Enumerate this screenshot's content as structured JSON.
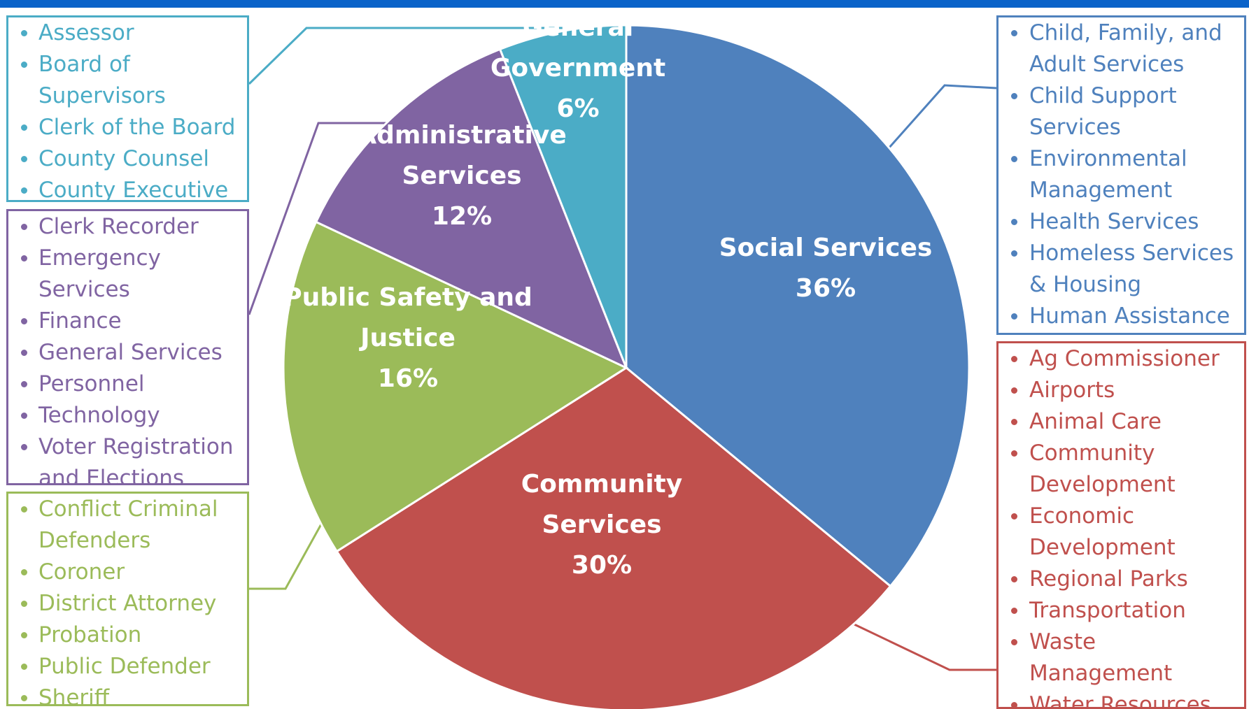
{
  "chart_data": {
    "type": "pie",
    "title": "",
    "categories": [
      "Social Services",
      "Community Services",
      "Public Safety and Justice",
      "Administrative Services",
      "General Government"
    ],
    "values": [
      36,
      30,
      16,
      12,
      6
    ],
    "value_labels": [
      "36%",
      "30%",
      "16%",
      "12%",
      "6%"
    ],
    "label_lines": [
      [
        "Social Services",
        "36%"
      ],
      [
        "Community",
        "Services",
        "30%"
      ],
      [
        "Public Safety and",
        "Justice",
        "16%"
      ],
      [
        "Administrative",
        "Services",
        "12%"
      ],
      [
        "General",
        "Government",
        "6%"
      ]
    ],
    "colors": [
      "#4f81bd",
      "#c0504d",
      "#9bbb59",
      "#8064a2",
      "#4bacc6"
    ],
    "start_angle_deg": 0,
    "direction": "clockwise",
    "legend": "none"
  },
  "department_lists": {
    "general_government": {
      "color": "#4bacc6",
      "items": [
        [
          "Assessor"
        ],
        [
          "Board of",
          "Supervisors"
        ],
        [
          "Clerk of the Board"
        ],
        [
          "County Counsel"
        ],
        [
          "County Executive"
        ]
      ]
    },
    "administrative_services": {
      "color": "#8064a2",
      "items": [
        [
          "Clerk Recorder"
        ],
        [
          "Emergency",
          "Services"
        ],
        [
          "Finance"
        ],
        [
          "General Services"
        ],
        [
          "Personnel"
        ],
        [
          "Technology"
        ],
        [
          "Voter Registration",
          "and Elections"
        ]
      ]
    },
    "public_safety": {
      "color": "#9bbb59",
      "items": [
        [
          "Conflict Criminal",
          "Defenders"
        ],
        [
          "Coroner"
        ],
        [
          "District Attorney"
        ],
        [
          "Probation"
        ],
        [
          "Public Defender"
        ],
        [
          "Sheriff"
        ]
      ]
    },
    "social_services": {
      "color": "#4f81bd",
      "items": [
        [
          "Child, Family, and",
          "Adult Services"
        ],
        [
          "Child Support",
          "Services"
        ],
        [
          "Environmental",
          "Management"
        ],
        [
          "Health Services"
        ],
        [
          "Homeless Services",
          "& Housing"
        ],
        [
          "Human Assistance"
        ]
      ]
    },
    "community_services": {
      "color": "#c0504d",
      "items": [
        [
          "Ag Commissioner"
        ],
        [
          "Airports"
        ],
        [
          "Animal Care"
        ],
        [
          "Community",
          "Development"
        ],
        [
          "Economic",
          "Development"
        ],
        [
          "Regional Parks"
        ],
        [
          "Transportation"
        ],
        [
          "Waste",
          "Management"
        ],
        [
          "Water Resources"
        ]
      ]
    }
  }
}
